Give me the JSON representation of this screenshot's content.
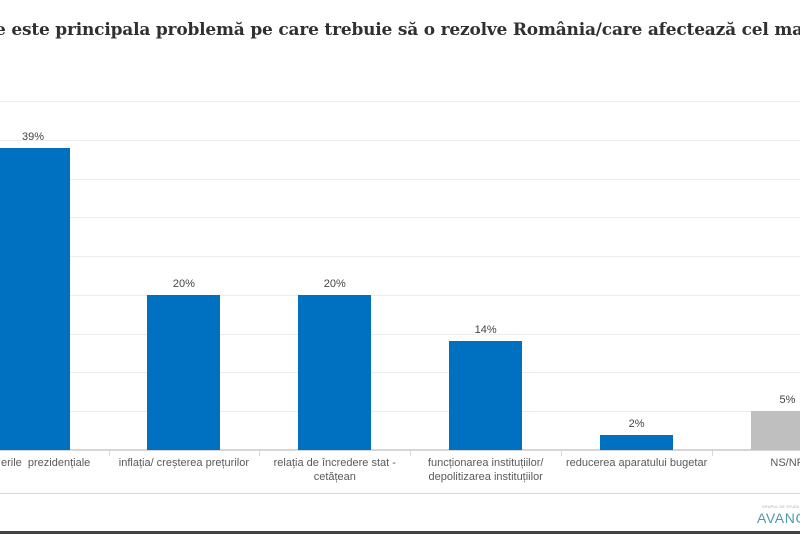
{
  "title": "e este principala problemă pe care trebuie să o rezolve România/care afectează cel mai mult viața dvs.?",
  "chart_data": {
    "type": "bar",
    "categories": [
      "erile  prezidențiale",
      "inflația/ creșterea prețurilor",
      "relația de încredere stat -\ncetățean",
      "funcționarea instituțiilor/\ndepolitizarea instituțiilor",
      "reducerea aparatului bugetar",
      "NS/NR"
    ],
    "values": [
      39,
      20,
      20,
      14,
      2,
      5
    ],
    "value_labels": [
      "39%",
      "20%",
      "20%",
      "14%",
      "2%",
      "5%"
    ],
    "bar_colors": [
      "#0070c0",
      "#0070c0",
      "#0070c0",
      "#0070c0",
      "#0070c0",
      "#bfbfbf"
    ],
    "xlabel": "",
    "ylabel": "",
    "ylim": [
      0,
      45
    ],
    "gridline_step_pct": 5,
    "grid": "horizontal",
    "legend": "none",
    "first_category_clipped_at_left_edge": true,
    "last_category_clipped_at_right_edge": true
  },
  "footer": {
    "logo_tagline": "GRUPUL DE STUDII SOCIO-COMPORTAMENTALE",
    "logo_name": "AVANGARDE"
  },
  "colors": {
    "bar_blue": "#0070c0",
    "bar_gray": "#bfbfbf",
    "gridline": "#ececec",
    "axis": "#d6d6d6",
    "title_text": "#303030",
    "value_label_text": "#444444",
    "category_text": "#5a5a5a",
    "logo_teal": "#4f99a9",
    "bottom_strip": "#424242"
  }
}
